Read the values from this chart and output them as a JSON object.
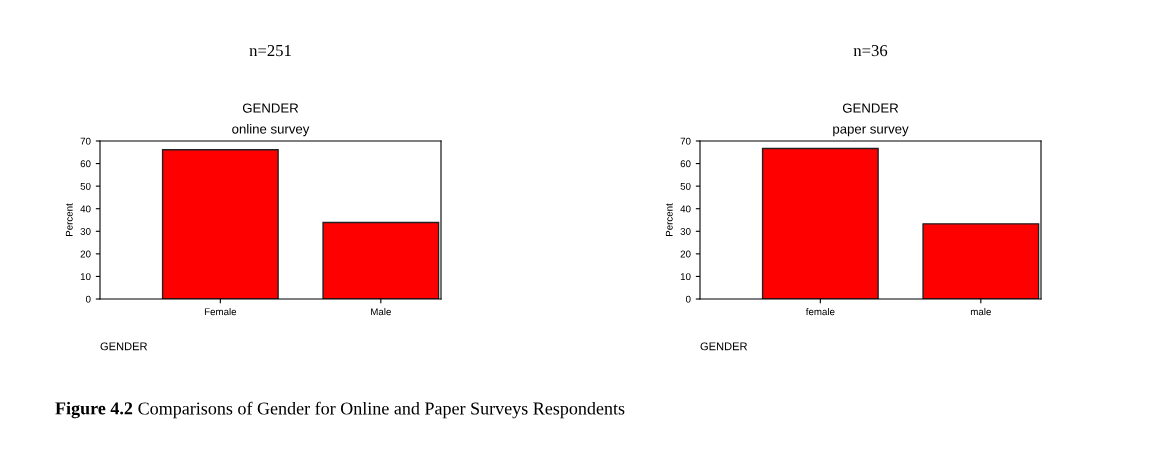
{
  "chart_data": [
    {
      "type": "bar",
      "title": "n=251",
      "subtitle": "GENDER\nonline survey",
      "xlabel": "GENDER",
      "ylabel": "Percent",
      "categories": [
        "Female",
        "Male"
      ],
      "values": [
        66.1,
        33.9
      ],
      "color": "#ff0000",
      "ylim": [
        0,
        70
      ],
      "yticks": [
        0,
        10,
        20,
        30,
        40,
        50,
        60,
        70
      ],
      "grid": false,
      "legend": false,
      "annotations": [
        "Figure 4.2",
        "Comparisons of Gender for Online and Paper Surveys Respondents"
      ]
    },
    {
      "type": "bar",
      "title": "n=36",
      "subtitle": "GENDER\npaper survey",
      "xlabel": "GENDER",
      "ylabel": "Percent",
      "categories": [
        "female",
        "male"
      ],
      "values": [
        66.7,
        33.3
      ],
      "color": "#ff0000",
      "ylim": [
        0,
        70
      ],
      "yticks": [
        0,
        10,
        20,
        30,
        40,
        50,
        60,
        70
      ],
      "grid": false,
      "legend": false
    }
  ]
}
